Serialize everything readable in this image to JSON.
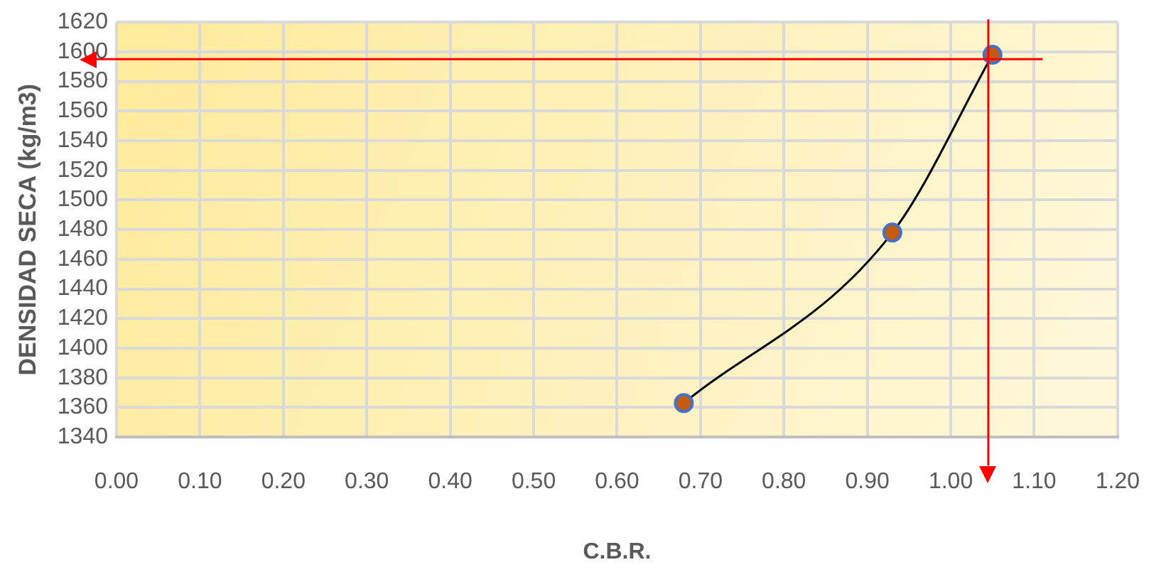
{
  "chart_data": {
    "type": "line",
    "xlabel": "C.B.R.",
    "ylabel": "DENSIDAD SECA (kg/m3)",
    "x": [
      0.68,
      0.93,
      1.05
    ],
    "series": [
      {
        "color": "#c55a11",
        "values": [
          1363,
          1478,
          1598
        ]
      }
    ],
    "xlim": [
      0,
      1.2
    ],
    "xticks": [
      {
        "value": 0,
        "label": "0.00"
      },
      {
        "value": 0.1,
        "label": "0.10"
      },
      {
        "value": 0.2,
        "label": "0.20"
      },
      {
        "value": 0.3,
        "label": "0.30"
      },
      {
        "value": 0.4,
        "label": "0.40"
      },
      {
        "value": 0.5,
        "label": "0.50"
      },
      {
        "value": 0.6,
        "label": "0.60"
      },
      {
        "value": 0.7,
        "label": "0.70"
      },
      {
        "value": 0.8,
        "label": "0.80"
      },
      {
        "value": 0.9,
        "label": "0.90"
      },
      {
        "value": 1,
        "label": "1.00"
      },
      {
        "value": 1.1,
        "label": "1.10"
      },
      {
        "value": 1.2,
        "label": "1.20"
      }
    ],
    "ylim": [
      1340,
      1620
    ],
    "yticks": [
      1340,
      1360,
      1380,
      1400,
      1420,
      1440,
      1460,
      1480,
      1500,
      1520,
      1540,
      1560,
      1580,
      1600,
      1620
    ],
    "ref_lines": [
      {
        "axis": "y",
        "value": 1595,
        "color": "#ff0000"
      },
      {
        "axis": "x",
        "value": 1.045,
        "color": "#ff0000"
      }
    ],
    "grid": true,
    "legend": false,
    "marker": "circle",
    "line_style": "solid"
  }
}
